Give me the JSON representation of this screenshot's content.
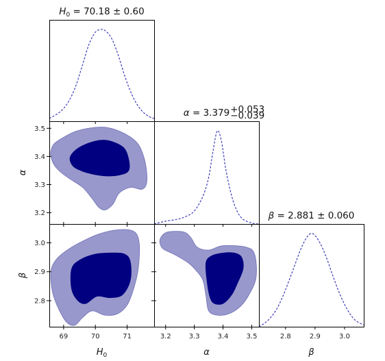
{
  "chart_data": {
    "type": "corner",
    "colors": {
      "inner_fill": "#000080",
      "outer_fill": "#9898cc",
      "outer_stroke": "#6f6fb8",
      "pdf_line": "#3b3bb8"
    },
    "parameters": [
      {
        "key": "H0",
        "label": "H",
        "label_sub": "0",
        "range": [
          68.55,
          71.85
        ],
        "ticks": [
          69,
          70,
          71
        ],
        "best": 70.18,
        "sigma": 0.6,
        "title_name": "H",
        "title_sub": "0",
        "title_value": " = 70.18 ± 0.60"
      },
      {
        "key": "alpha",
        "label": "α",
        "label_sub": "",
        "range": [
          3.16,
          3.525
        ],
        "ticks": [
          3.2,
          3.3,
          3.4,
          3.5
        ],
        "best": 3.379,
        "sigma_plus": 0.053,
        "sigma_minus": 0.039,
        "title_name": "α",
        "title_sub": "",
        "title_value": " = 3.379",
        "title_sup_plus": "+0.053",
        "title_sup_minus": "−0.039"
      },
      {
        "key": "beta",
        "label": "β",
        "label_sub": "",
        "range": [
          2.71,
          3.065
        ],
        "ticks": [
          2.8,
          2.9,
          3.0
        ],
        "best": 2.881,
        "sigma": 0.06,
        "title_name": "β",
        "title_sub": "",
        "title_value": " = 2.881 ± 0.060"
      }
    ],
    "tick_labels": {
      "H0": [
        "69",
        "70",
        "71"
      ],
      "alpha": [
        "3.2",
        "3.3",
        "3.4",
        "3.5"
      ],
      "beta": [
        "2.8",
        "2.9",
        "3.0"
      ],
      "alpha_rows": [
        "3.2",
        "3.3",
        "3.4",
        "3.5"
      ],
      "beta_rows": [
        "2.8",
        "2.9",
        "3.0"
      ]
    },
    "marginals": [
      {
        "param": "H0",
        "x": [
          68.55,
          68.8,
          69.0,
          69.2,
          69.4,
          69.6,
          69.8,
          70.0,
          70.18,
          70.3,
          70.5,
          70.7,
          70.9,
          71.1,
          71.3,
          71.5,
          71.7,
          71.85
        ],
        "y": [
          0.03,
          0.08,
          0.14,
          0.24,
          0.4,
          0.62,
          0.84,
          0.97,
          1.0,
          0.99,
          0.91,
          0.74,
          0.52,
          0.33,
          0.19,
          0.1,
          0.05,
          0.03
        ]
      },
      {
        "param": "alpha",
        "x": [
          3.16,
          3.2,
          3.24,
          3.27,
          3.3,
          3.33,
          3.35,
          3.365,
          3.38,
          3.395,
          3.41,
          3.43,
          3.45,
          3.47,
          3.5,
          3.525
        ],
        "y": [
          0.0,
          0.03,
          0.05,
          0.08,
          0.14,
          0.3,
          0.5,
          0.78,
          1.0,
          0.88,
          0.58,
          0.3,
          0.13,
          0.05,
          0.01,
          0.0
        ]
      },
      {
        "param": "beta",
        "x": [
          2.71,
          2.73,
          2.75,
          2.77,
          2.79,
          2.81,
          2.83,
          2.85,
          2.87,
          2.885,
          2.9,
          2.92,
          2.94,
          2.96,
          2.98,
          3.0,
          3.02,
          3.04,
          3.065
        ],
        "y": [
          0.0,
          0.04,
          0.1,
          0.19,
          0.32,
          0.48,
          0.65,
          0.82,
          0.95,
          1.0,
          0.98,
          0.88,
          0.73,
          0.55,
          0.38,
          0.24,
          0.13,
          0.06,
          0.02
        ]
      }
    ],
    "contours": [
      {
        "x": "H0",
        "y": "alpha",
        "outer": [
          [
            68.6,
            3.42
          ],
          [
            68.7,
            3.445
          ],
          [
            69.0,
            3.468
          ],
          [
            69.4,
            3.49
          ],
          [
            69.9,
            3.502
          ],
          [
            70.35,
            3.503
          ],
          [
            70.85,
            3.485
          ],
          [
            71.3,
            3.45
          ],
          [
            71.52,
            3.4
          ],
          [
            71.62,
            3.34
          ],
          [
            71.6,
            3.3
          ],
          [
            71.45,
            3.283
          ],
          [
            71.1,
            3.29
          ],
          [
            70.75,
            3.27
          ],
          [
            70.55,
            3.23
          ],
          [
            70.3,
            3.21
          ],
          [
            70.1,
            3.22
          ],
          [
            69.9,
            3.25
          ],
          [
            69.6,
            3.29
          ],
          [
            69.2,
            3.32
          ],
          [
            68.9,
            3.345
          ],
          [
            68.7,
            3.37
          ],
          [
            68.6,
            3.4
          ]
        ],
        "inner": [
          [
            69.2,
            3.395
          ],
          [
            69.4,
            3.425
          ],
          [
            69.8,
            3.448
          ],
          [
            70.2,
            3.458
          ],
          [
            70.55,
            3.452
          ],
          [
            70.9,
            3.43
          ],
          [
            71.05,
            3.39
          ],
          [
            71.05,
            3.35
          ],
          [
            70.8,
            3.335
          ],
          [
            70.4,
            3.33
          ],
          [
            70.0,
            3.335
          ],
          [
            69.6,
            3.347
          ],
          [
            69.3,
            3.365
          ]
        ]
      },
      {
        "x": "H0",
        "y": "beta",
        "outer": [
          [
            68.6,
            2.9
          ],
          [
            68.75,
            2.94
          ],
          [
            69.05,
            2.97
          ],
          [
            69.5,
            3.0
          ],
          [
            70.1,
            3.03
          ],
          [
            70.7,
            3.045
          ],
          [
            71.2,
            3.04
          ],
          [
            71.38,
            3.0
          ],
          [
            71.35,
            2.91
          ],
          [
            71.2,
            2.84
          ],
          [
            71.0,
            2.785
          ],
          [
            70.7,
            2.755
          ],
          [
            70.3,
            2.75
          ],
          [
            69.9,
            2.765
          ],
          [
            69.6,
            2.742
          ],
          [
            69.35,
            2.715
          ],
          [
            69.1,
            2.725
          ],
          [
            68.85,
            2.77
          ],
          [
            68.65,
            2.83
          ]
        ],
        "inner": [
          [
            69.25,
            2.91
          ],
          [
            69.5,
            2.94
          ],
          [
            69.95,
            2.96
          ],
          [
            70.4,
            2.965
          ],
          [
            70.9,
            2.962
          ],
          [
            71.1,
            2.935
          ],
          [
            71.1,
            2.87
          ],
          [
            70.85,
            2.82
          ],
          [
            70.45,
            2.81
          ],
          [
            70.05,
            2.815
          ],
          [
            69.7,
            2.79
          ],
          [
            69.45,
            2.8
          ],
          [
            69.25,
            2.84
          ]
        ]
      },
      {
        "x": "alpha",
        "y": "beta",
        "outer": [
          [
            3.18,
            3.01
          ],
          [
            3.2,
            3.035
          ],
          [
            3.24,
            3.04
          ],
          [
            3.27,
            3.035
          ],
          [
            3.29,
            3.015
          ],
          [
            3.31,
            2.985
          ],
          [
            3.35,
            2.975
          ],
          [
            3.4,
            2.99
          ],
          [
            3.48,
            2.985
          ],
          [
            3.51,
            2.96
          ],
          [
            3.515,
            2.88
          ],
          [
            3.49,
            2.82
          ],
          [
            3.46,
            2.78
          ],
          [
            3.42,
            2.755
          ],
          [
            3.38,
            2.75
          ],
          [
            3.35,
            2.765
          ],
          [
            3.34,
            2.82
          ],
          [
            3.33,
            2.87
          ],
          [
            3.31,
            2.9
          ],
          [
            3.28,
            2.93
          ],
          [
            3.23,
            2.96
          ],
          [
            3.19,
            2.98
          ]
        ],
        "inner": [
          [
            3.34,
            2.93
          ],
          [
            3.36,
            2.955
          ],
          [
            3.4,
            2.965
          ],
          [
            3.44,
            2.965
          ],
          [
            3.465,
            2.95
          ],
          [
            3.47,
            2.91
          ],
          [
            3.45,
            2.86
          ],
          [
            3.43,
            2.82
          ],
          [
            3.4,
            2.79
          ],
          [
            3.37,
            2.79
          ],
          [
            3.355,
            2.81
          ],
          [
            3.345,
            2.86
          ]
        ]
      }
    ]
  }
}
